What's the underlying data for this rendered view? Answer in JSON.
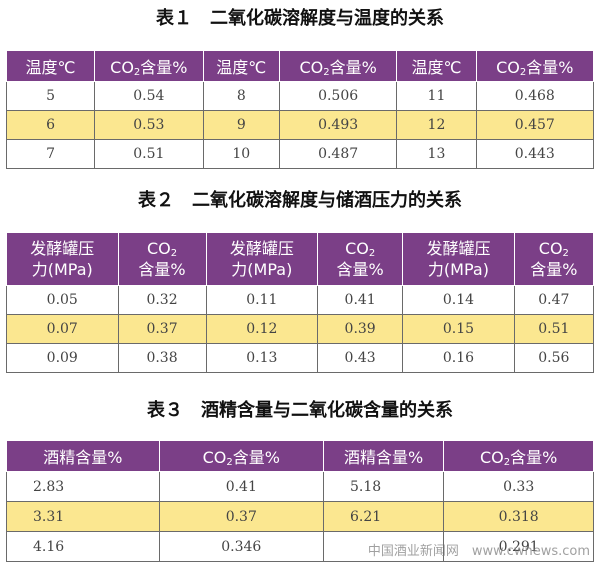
{
  "table1": {
    "title": "表１　二氧化碳溶解度与温度的关系",
    "headers": [
      {
        "pre": "温度℃"
      },
      {
        "pre": "CO",
        "sub": "2",
        "post": "含量%"
      },
      {
        "pre": "温度℃"
      },
      {
        "pre": "CO",
        "sub": "2",
        "post": "含量%"
      },
      {
        "pre": "温度℃"
      },
      {
        "pre": "CO",
        "sub": "2",
        "post": "含量%"
      }
    ],
    "rows": [
      [
        "5",
        "0.54",
        "8",
        "0.506",
        "11",
        "0.468"
      ],
      [
        "6",
        "0.53",
        "9",
        "0.493",
        "12",
        "0.457"
      ],
      [
        "7",
        "0.51",
        "10",
        "0.487",
        "13",
        "0.443"
      ]
    ]
  },
  "table2": {
    "title": "表２　二氧化碳溶解度与储酒压力的关系",
    "headers": [
      {
        "l1": "发酵罐压",
        "l2": "力(MPa)"
      },
      {
        "l1": "CO",
        "l1sub": "2",
        "l2": "含量%"
      },
      {
        "l1": "发酵罐压",
        "l2": "力(MPa)"
      },
      {
        "l1": "CO",
        "l1sub": "2",
        "l2": "含量%"
      },
      {
        "l1": "发酵罐压",
        "l2": "力(MPa)"
      },
      {
        "l1": "CO",
        "l1sub": "2",
        "l2": "含量%"
      }
    ],
    "rows": [
      [
        "0.05",
        "0.32",
        "0.11",
        "0.41",
        "0.14",
        "0.47"
      ],
      [
        "0.07",
        "0.37",
        "0.12",
        "0.39",
        "0.15",
        "0.51"
      ],
      [
        "0.09",
        "0.38",
        "0.13",
        "0.43",
        "0.16",
        "0.56"
      ]
    ]
  },
  "table3": {
    "title": "表３　酒精含量与二氧化碳含量的关系",
    "headers": [
      {
        "pre": "酒精含量%"
      },
      {
        "pre": "CO",
        "sub": "2",
        "post": "含量%"
      },
      {
        "pre": "酒精含量%"
      },
      {
        "pre": "CO",
        "sub": "2",
        "post": "含量%"
      }
    ],
    "rows": [
      [
        "2.83",
        "0.41",
        "5.18",
        "0.33"
      ],
      [
        "3.31",
        "0.37",
        "6.21",
        "0.318"
      ],
      [
        "4.16",
        "0.346",
        "",
        "0.291"
      ]
    ]
  },
  "watermark": "中国酒业新闻网　www.cwnews.com",
  "colors": {
    "header": "#7b3f87",
    "highlight": "#fbe790"
  }
}
